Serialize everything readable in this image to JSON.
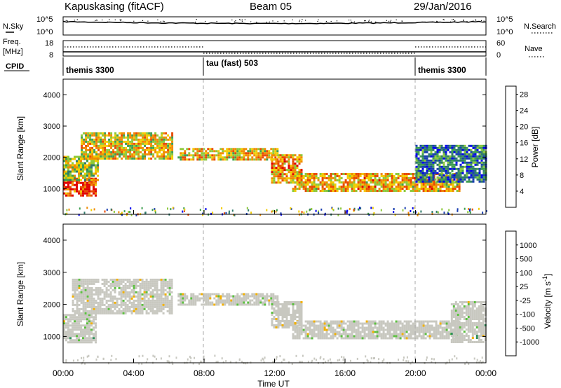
{
  "header": {
    "station": "Kapuskasing (fitACF)",
    "beam": "Beam 05",
    "date": "29/Jan/2016"
  },
  "noise_panel": {
    "left_label": "N.Sky",
    "right_label": "N.Search",
    "left_ticks": [
      "10^5",
      "10^0"
    ],
    "right_ticks": [
      "10^5",
      "10^0"
    ]
  },
  "freq_panel": {
    "left_label_line1": "Freq.",
    "left_label_line2": "[MHz]",
    "right_label": "Nave",
    "left_ticks": [
      "18",
      "8"
    ],
    "right_ticks": [
      "60",
      "0"
    ]
  },
  "cpid": {
    "label": "CPID",
    "segments": [
      {
        "name": "themis 3300",
        "start_hour": 0,
        "end_hour": 8
      },
      {
        "name": "tau (fast) 503",
        "start_hour": 8,
        "end_hour": 20
      },
      {
        "name": "themis 3300",
        "start_hour": 20,
        "end_hour": 24
      }
    ]
  },
  "colors": {
    "power_scale": [
      "#0000ee",
      "#1a3fb0",
      "#2f7a6a",
      "#3f9f50",
      "#8cc93a",
      "#f2cc00",
      "#f08a00",
      "#e84a00",
      "#e00000"
    ],
    "velocity_scale": [
      "#1a30c0",
      "#2f5fa8",
      "#2e8f5a",
      "#5cc040",
      "#c8c8c0",
      "#c8c8c0",
      "#f2b000",
      "#f07a00",
      "#e83000",
      "#e00000"
    ],
    "ground_scatter": "#c8c8c0"
  },
  "chart_data": [
    {
      "type": "heatmap",
      "title": "",
      "xlabel": "",
      "ylabel": "Slant Range [km]",
      "xlim": [
        0,
        24
      ],
      "ylim": [
        180,
        4500
      ],
      "yticks": [
        "1000",
        "2000",
        "3000",
        "4000"
      ],
      "colorbar": {
        "label": "Power [dB]",
        "ticks": [
          "4",
          "8",
          "12",
          "16",
          "20",
          "24",
          "28"
        ],
        "range": [
          0,
          30
        ]
      },
      "features": [
        {
          "name": "bottom_echo_band",
          "start_hour": 0.0,
          "end_hour": 1.9,
          "lower_km": 780,
          "upper_km": 1350,
          "power_db": 26
        },
        {
          "name": "rising_arc",
          "start_hour": 0.0,
          "end_hour": 2.0,
          "lower_km": 1300,
          "upper_km": 2050,
          "power_db": 16
        },
        {
          "name": "daytime_arc",
          "start_hour": 1.0,
          "end_hour": 6.2,
          "lower_km": 1950,
          "upper_km": 2800,
          "power_db": 18
        },
        {
          "name": "midday_band",
          "start_hour": 6.5,
          "end_hour": 12.2,
          "lower_km": 1950,
          "upper_km": 2300,
          "power_db": 19
        },
        {
          "name": "descending_band",
          "start_hour": 11.8,
          "end_hour": 13.5,
          "lower_km": 1200,
          "upper_km": 2100,
          "power_db": 22
        },
        {
          "name": "evening_band",
          "start_hour": 13.0,
          "end_hour": 22.5,
          "lower_km": 900,
          "upper_km": 1500,
          "power_db": 20
        },
        {
          "name": "late_scatter",
          "start_hour": 20.0,
          "end_hour": 24.0,
          "lower_km": 1200,
          "upper_km": 2400,
          "power_db": 8
        }
      ]
    },
    {
      "type": "heatmap",
      "title": "",
      "xlabel": "Time UT",
      "ylabel": "Slant Range [km]",
      "xlim": [
        0,
        24
      ],
      "ylim": [
        180,
        4500
      ],
      "yticks": [
        "1000",
        "2000",
        "3000",
        "4000"
      ],
      "xticks": [
        "00:00",
        "04:00",
        "08:00",
        "12:00",
        "16:00",
        "20:00",
        "00:00"
      ],
      "colorbar": {
        "label": "Velocity [m s^-1]",
        "ticks": [
          "1000",
          "500",
          "100",
          "25",
          "-25",
          "-100",
          "-500",
          "-1000"
        ],
        "range": [
          -1000,
          1000
        ]
      },
      "features": [
        {
          "name": "bottom_echo_band",
          "start_hour": 0.0,
          "end_hour": 1.9,
          "lower_km": 800,
          "upper_km": 1700,
          "velocity": -150
        },
        {
          "name": "daytime_arc",
          "start_hour": 0.5,
          "end_hour": 6.2,
          "lower_km": 1700,
          "upper_km": 2800,
          "velocity": 0
        },
        {
          "name": "midday_band",
          "start_hour": 6.5,
          "end_hour": 12.2,
          "lower_km": 2000,
          "upper_km": 2350,
          "velocity": 0
        },
        {
          "name": "descending_band",
          "start_hour": 11.8,
          "end_hour": 13.5,
          "lower_km": 1250,
          "upper_km": 2100,
          "velocity": 0
        },
        {
          "name": "evening_band",
          "start_hour": 13.0,
          "end_hour": 22.5,
          "lower_km": 950,
          "upper_km": 1500,
          "velocity": 0
        },
        {
          "name": "late_scatter",
          "start_hour": 22.0,
          "end_hour": 24.0,
          "lower_km": 800,
          "upper_km": 2100,
          "velocity": -120
        }
      ]
    }
  ]
}
